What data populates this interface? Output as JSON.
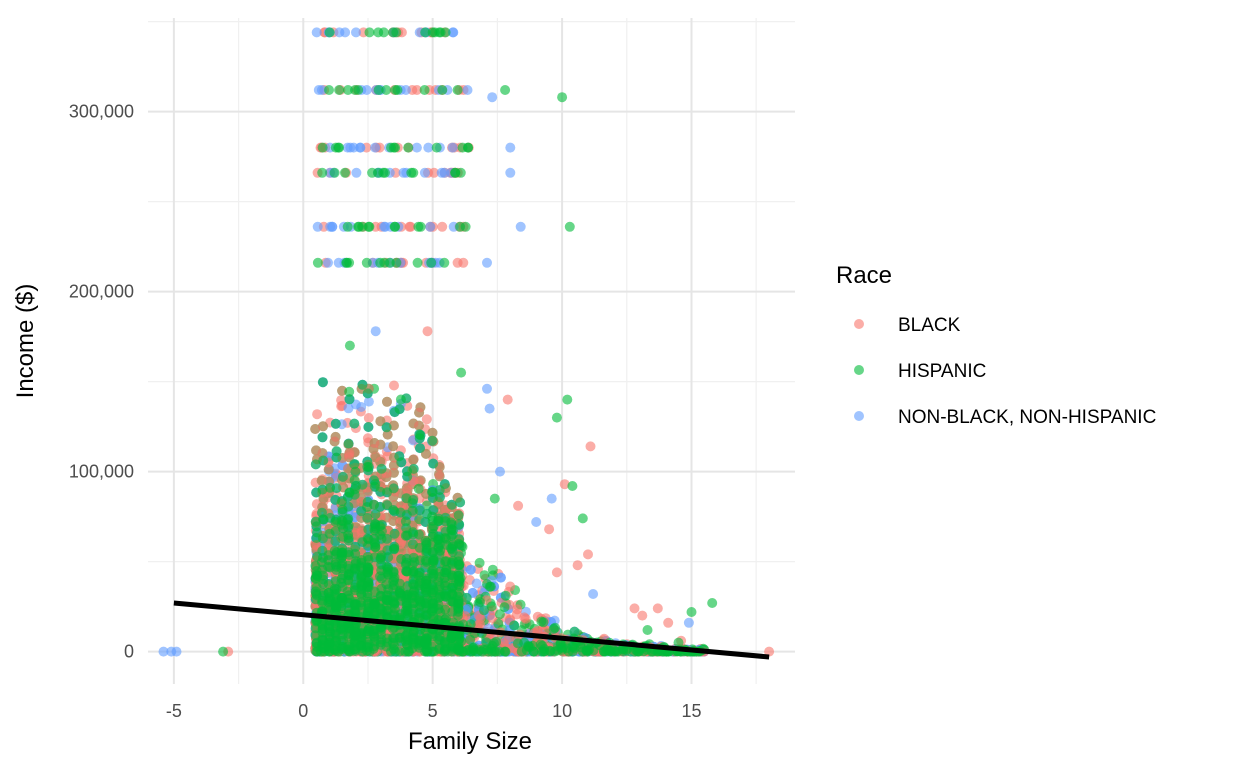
{
  "chart_data": {
    "type": "scatter",
    "title": "",
    "xlabel": "Family Size",
    "ylabel": "Income ($)",
    "xlim": [
      -6,
      19
    ],
    "ylim": [
      -18000,
      352000
    ],
    "x_ticks": [
      -5,
      0,
      5,
      10,
      15
    ],
    "x_tick_labels": [
      "-5",
      "0",
      "5",
      "10",
      "15"
    ],
    "y_ticks": [
      0,
      100000,
      200000,
      300000
    ],
    "y_tick_labels": [
      "0",
      "100,000",
      "200,000",
      "300,000"
    ],
    "grid": true,
    "legend": {
      "title": "Race",
      "position": "right",
      "entries": [
        {
          "label": "BLACK",
          "color": "#F8766D"
        },
        {
          "label": "HISPANIC",
          "color": "#00BA38"
        },
        {
          "label": "NON-BLACK, NON-HISPANIC",
          "color": "#619CFF"
        }
      ]
    },
    "point_alpha": 0.6,
    "income_bands": [
      216000,
      236000,
      266000,
      280000,
      312000,
      344000
    ],
    "series": [
      {
        "label": "BLACK",
        "color": "#F8766D",
        "points": [
          [
            -2.9,
            0
          ],
          [
            18,
            0
          ],
          [
            7.9,
            140000
          ],
          [
            11.1,
            114000
          ],
          [
            11.0,
            54000
          ],
          [
            10.6,
            48000
          ],
          [
            9.5,
            68000
          ],
          [
            9.8,
            44000
          ],
          [
            12.8,
            24000
          ],
          [
            13.1,
            20000
          ],
          [
            14.1,
            16000
          ],
          [
            14.6,
            6000
          ],
          [
            13.7,
            24000
          ],
          [
            4.8,
            178000
          ],
          [
            10.1,
            93000
          ],
          [
            8.3,
            81000
          ]
        ]
      },
      {
        "label": "HISPANIC",
        "color": "#00BA38",
        "points": [
          [
            -3.1,
            0
          ],
          [
            7.8,
            312000
          ],
          [
            10.0,
            308000
          ],
          [
            10.3,
            236000
          ],
          [
            10.2,
            140000
          ],
          [
            9.8,
            130000
          ],
          [
            10.4,
            92000
          ],
          [
            10.8,
            74000
          ],
          [
            15.8,
            27000
          ],
          [
            15.0,
            22000
          ],
          [
            13.3,
            12000
          ],
          [
            14.5,
            5000
          ],
          [
            1.8,
            170000
          ],
          [
            6.1,
            155000
          ],
          [
            7.4,
            85000
          ]
        ]
      },
      {
        "label": "NON-BLACK, NON-HISPANIC",
        "color": "#619CFF",
        "points": [
          [
            -5.4,
            0
          ],
          [
            -5.1,
            0
          ],
          [
            -4.9,
            0
          ],
          [
            7.3,
            308000
          ],
          [
            8.0,
            280000
          ],
          [
            8.0,
            266000
          ],
          [
            8.4,
            236000
          ],
          [
            7.1,
            216000
          ],
          [
            7.1,
            146000
          ],
          [
            7.2,
            135000
          ],
          [
            7.6,
            100000
          ],
          [
            9.6,
            85000
          ],
          [
            11.2,
            32000
          ],
          [
            14.9,
            16000
          ],
          [
            2.8,
            178000
          ],
          [
            9.0,
            72000
          ]
        ]
      }
    ],
    "trend_line": {
      "color": "#000000",
      "points": [
        [
          -5,
          27000
        ],
        [
          18,
          -3000
        ]
      ]
    }
  }
}
